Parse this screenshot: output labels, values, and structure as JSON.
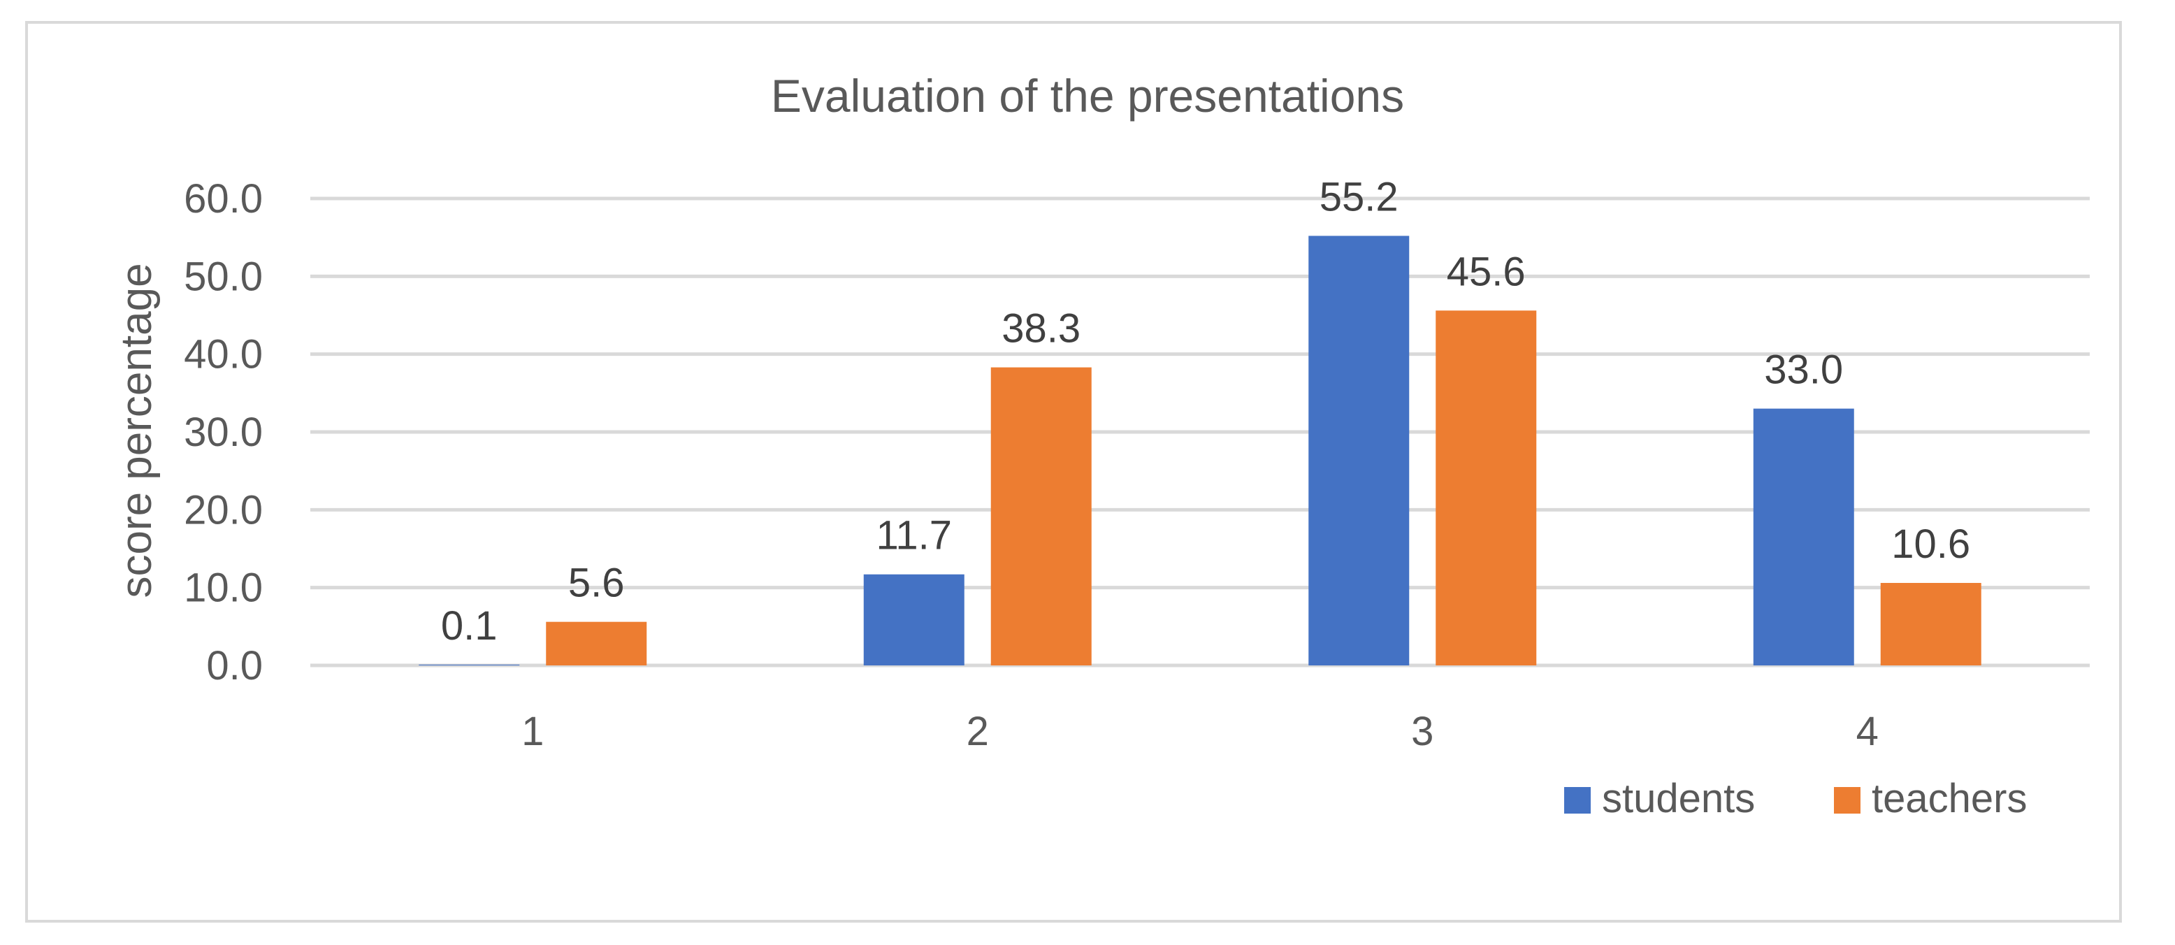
{
  "chart_data": {
    "type": "bar",
    "title": "Evaluation of the presentations",
    "xlabel": "",
    "ylabel": "score percentage",
    "categories": [
      "1",
      "2",
      "3",
      "4"
    ],
    "ylim": [
      0,
      60
    ],
    "yticks": [
      0,
      10,
      20,
      30,
      40,
      50,
      60
    ],
    "ytick_labels": [
      "0.0",
      "10.0",
      "20.0",
      "30.0",
      "40.0",
      "50.0",
      "60.0"
    ],
    "grid": true,
    "legend_position": "bottom-right",
    "series": [
      {
        "name": "students",
        "color": "#4472C4",
        "values": [
          0.1,
          11.7,
          55.2,
          33.0
        ],
        "labels": [
          "0.1",
          "11.7",
          "55.2",
          "33.0"
        ]
      },
      {
        "name": "teachers",
        "color": "#ED7D31",
        "values": [
          5.6,
          38.3,
          45.6,
          10.6
        ],
        "labels": [
          "5.6",
          "38.3",
          "45.6",
          "10.6"
        ]
      }
    ]
  }
}
